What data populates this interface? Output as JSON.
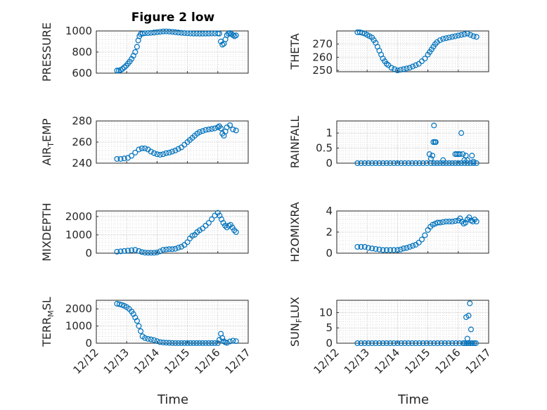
{
  "figure_title": "Figure 2 low",
  "colors": {
    "marker": "#0072BD",
    "axis": "#262626",
    "grid": "#c8c8c8"
  },
  "chart_data": [
    {
      "type": "scatter",
      "ylabel": "PRESSURE",
      "ylim": [
        600,
        1000
      ],
      "yticks": [
        600,
        800,
        1000
      ],
      "x": [
        12.68,
        12.74,
        12.8,
        12.86,
        12.92,
        12.98,
        13.04,
        13.1,
        13.16,
        13.22,
        13.28,
        13.34,
        13.38,
        13.42,
        13.46,
        13.52,
        13.6,
        13.7,
        13.8,
        13.9,
        14.0,
        14.1,
        14.2,
        14.3,
        14.4,
        14.5,
        14.6,
        14.7,
        14.8,
        14.9,
        15.0,
        15.1,
        15.2,
        15.3,
        15.4,
        15.5,
        15.6,
        15.7,
        15.8,
        15.9,
        16.0,
        16.05,
        16.1,
        16.15,
        16.2,
        16.25,
        16.3,
        16.35,
        16.4,
        16.45,
        16.5,
        16.55,
        16.6
      ],
      "y": [
        625,
        625,
        630,
        640,
        655,
        670,
        690,
        710,
        735,
        765,
        800,
        850,
        910,
        950,
        970,
        975,
        978,
        980,
        982,
        985,
        988,
        992,
        995,
        996,
        994,
        992,
        988,
        985,
        982,
        980,
        978,
        976,
        975,
        975,
        974,
        974,
        975,
        975,
        976,
        976,
        976,
        975,
        900,
        870,
        880,
        920,
        960,
        975,
        980,
        970,
        960,
        950,
        958
      ],
      "xlim": [
        12,
        17
      ],
      "xticks": [
        12,
        13,
        14,
        15,
        16,
        17
      ],
      "xticklabels": [
        "12/12",
        "12/13",
        "12/14",
        "12/15",
        "12/16",
        "12/17"
      ]
    },
    {
      "type": "scatter",
      "ylabel": "THETA",
      "ylim": [
        249,
        280
      ],
      "yticks": [
        250,
        260,
        270
      ],
      "x": [
        12.68,
        12.76,
        12.84,
        12.92,
        13.0,
        13.08,
        13.16,
        13.22,
        13.28,
        13.34,
        13.4,
        13.46,
        13.52,
        13.58,
        13.64,
        13.7,
        13.8,
        13.9,
        14.0,
        14.1,
        14.2,
        14.3,
        14.4,
        14.5,
        14.6,
        14.7,
        14.8,
        14.9,
        15.0,
        15.06,
        15.12,
        15.18,
        15.24,
        15.3,
        15.4,
        15.5,
        15.6,
        15.7,
        15.8,
        15.9,
        16.0,
        16.1,
        16.2,
        16.3,
        16.4,
        16.5,
        16.6
      ],
      "y": [
        279,
        279,
        278.5,
        278,
        277,
        276,
        275,
        273,
        271,
        268,
        265,
        262,
        259,
        257,
        255,
        254,
        252,
        251,
        250,
        250.5,
        251,
        251.5,
        252,
        253,
        254,
        255,
        257,
        259,
        262,
        264,
        266,
        268,
        270,
        271.5,
        273,
        274,
        274.5,
        275,
        275.5,
        276,
        276.5,
        277,
        277.5,
        278,
        277,
        276,
        275.5
      ],
      "xlim": [
        12,
        17
      ],
      "xticks": [
        12,
        13,
        14,
        15,
        16,
        17
      ],
      "xticklabels": [
        "12/12",
        "12/13",
        "12/14",
        "12/15",
        "12/16",
        "12/17"
      ]
    },
    {
      "type": "scatter",
      "ylabel": "AIR_TEMP",
      "ylim": [
        240,
        280
      ],
      "yticks": [
        240,
        260,
        280
      ],
      "x": [
        12.68,
        12.8,
        12.92,
        13.04,
        13.16,
        13.28,
        13.4,
        13.5,
        13.6,
        13.7,
        13.8,
        13.9,
        14.0,
        14.1,
        14.2,
        14.3,
        14.4,
        14.5,
        14.6,
        14.7,
        14.8,
        14.9,
        15.0,
        15.08,
        15.16,
        15.24,
        15.32,
        15.4,
        15.5,
        15.6,
        15.7,
        15.8,
        15.9,
        16.0,
        16.05,
        16.1,
        16.15,
        16.2,
        16.25,
        16.3,
        16.4,
        16.5,
        16.6
      ],
      "y": [
        244,
        244,
        244.5,
        245,
        247,
        250,
        253,
        254,
        254,
        253,
        251,
        249.5,
        248.5,
        248,
        248.5,
        249.5,
        250,
        251,
        252,
        253.5,
        255,
        257.5,
        260,
        262,
        264,
        266,
        268,
        269.5,
        270.5,
        271.5,
        272,
        272.5,
        273,
        274,
        275,
        273,
        268,
        266,
        270,
        274,
        276,
        272,
        271
      ],
      "xlim": [
        12,
        17
      ],
      "xticks": [
        12,
        13,
        14,
        15,
        16,
        17
      ],
      "xticklabels": [
        "12/12",
        "12/13",
        "12/14",
        "12/15",
        "12/16",
        "12/17"
      ]
    },
    {
      "type": "scatter",
      "ylabel": "RAINFALL",
      "ylim": [
        0,
        1.4
      ],
      "yticks": [
        0,
        0.5,
        1
      ],
      "x": [
        12.68,
        12.8,
        12.92,
        13.04,
        13.16,
        13.28,
        13.4,
        13.52,
        13.64,
        13.76,
        13.88,
        14.0,
        14.12,
        14.24,
        14.36,
        14.48,
        14.6,
        14.72,
        14.84,
        14.96,
        15.1,
        15.2,
        15.3,
        15.4,
        15.5,
        15.6,
        15.7,
        15.8,
        15.9,
        16.0,
        16.1,
        16.2,
        16.3,
        16.4,
        16.5,
        16.6,
        15.05,
        15.1,
        15.15,
        15.18,
        15.2,
        15.23,
        15.26,
        15.5,
        15.9,
        15.95,
        16.0,
        16.05,
        16.1,
        16.15,
        16.2,
        16.25,
        16.3,
        16.45,
        16.5
      ],
      "y": [
        0,
        0,
        0,
        0,
        0,
        0,
        0,
        0,
        0,
        0,
        0,
        0,
        0,
        0,
        0,
        0,
        0,
        0,
        0,
        0,
        0,
        0,
        0,
        0,
        0,
        0,
        0,
        0,
        0,
        0,
        0,
        0,
        0,
        0,
        0,
        0,
        0.3,
        0.15,
        0.25,
        0.7,
        1.25,
        0.7,
        0.7,
        0.1,
        0.3,
        0.3,
        0.3,
        0.3,
        1.0,
        0.3,
        0.1,
        0.25,
        0.1,
        0.25,
        0.05
      ],
      "xlim": [
        12,
        17
      ],
      "xticks": [
        12,
        13,
        14,
        15,
        16,
        17
      ],
      "xticklabels": [
        "12/12",
        "12/13",
        "12/14",
        "12/15",
        "12/16",
        "12/17"
      ]
    },
    {
      "type": "scatter",
      "ylabel": "MIXDEPTH",
      "ylim": [
        0,
        2300
      ],
      "yticks": [
        0,
        1000,
        2000
      ],
      "x": [
        12.68,
        12.8,
        12.92,
        13.04,
        13.16,
        13.28,
        13.4,
        13.5,
        13.6,
        13.7,
        13.8,
        13.9,
        14.0,
        14.1,
        14.2,
        14.3,
        14.4,
        14.5,
        14.6,
        14.7,
        14.8,
        14.9,
        15.0,
        15.08,
        15.16,
        15.24,
        15.32,
        15.4,
        15.5,
        15.6,
        15.7,
        15.8,
        15.9,
        16.0,
        16.06,
        16.12,
        16.18,
        16.24,
        16.3,
        16.36,
        16.42,
        16.48,
        16.54,
        16.6
      ],
      "y": [
        80,
        100,
        120,
        140,
        160,
        180,
        120,
        60,
        30,
        20,
        20,
        20,
        40,
        100,
        180,
        200,
        220,
        220,
        240,
        300,
        350,
        450,
        600,
        800,
        950,
        1000,
        1150,
        1250,
        1350,
        1500,
        1650,
        1850,
        2050,
        2200,
        2050,
        1850,
        1650,
        1500,
        1400,
        1500,
        1550,
        1400,
        1250,
        1150
      ],
      "xlim": [
        12,
        17
      ],
      "xticks": [
        12,
        13,
        14,
        15,
        16,
        17
      ],
      "xticklabels": [
        "12/12",
        "12/13",
        "12/14",
        "12/15",
        "12/16",
        "12/17"
      ]
    },
    {
      "type": "scatter",
      "ylabel": "H2OMIXRA",
      "ylim": [
        0,
        4
      ],
      "yticks": [
        0,
        2,
        4
      ],
      "x": [
        12.68,
        12.8,
        12.92,
        13.04,
        13.16,
        13.28,
        13.4,
        13.52,
        13.64,
        13.76,
        13.88,
        14.0,
        14.1,
        14.2,
        14.3,
        14.4,
        14.5,
        14.6,
        14.7,
        14.8,
        14.9,
        15.0,
        15.08,
        15.16,
        15.24,
        15.32,
        15.4,
        15.5,
        15.6,
        15.7,
        15.8,
        15.9,
        16.0,
        16.06,
        16.12,
        16.18,
        16.24,
        16.3,
        16.36,
        16.42,
        16.48,
        16.54,
        16.6
      ],
      "y": [
        0.6,
        0.6,
        0.6,
        0.5,
        0.45,
        0.4,
        0.35,
        0.3,
        0.3,
        0.3,
        0.3,
        0.3,
        0.35,
        0.45,
        0.5,
        0.6,
        0.7,
        0.8,
        1.0,
        1.3,
        1.7,
        2.2,
        2.5,
        2.7,
        2.8,
        2.9,
        2.9,
        2.95,
        3.0,
        3.0,
        3.0,
        3.05,
        3.1,
        3.3,
        3.0,
        2.8,
        2.9,
        3.2,
        3.4,
        3.1,
        3.0,
        3.2,
        3.0
      ],
      "xlim": [
        12,
        17
      ],
      "xticks": [
        12,
        13,
        14,
        15,
        16,
        17
      ],
      "xticklabels": [
        "12/12",
        "12/13",
        "12/14",
        "12/15",
        "12/16",
        "12/17"
      ]
    },
    {
      "type": "scatter",
      "ylabel": "TERR_MSL",
      "ylim": [
        0,
        2500
      ],
      "yticks": [
        0,
        1000,
        2000
      ],
      "x": [
        12.68,
        12.76,
        12.84,
        12.92,
        13.0,
        13.08,
        13.16,
        13.22,
        13.28,
        13.34,
        13.4,
        13.46,
        13.52,
        13.6,
        13.7,
        13.8,
        13.9,
        14.0,
        14.1,
        14.2,
        14.3,
        14.4,
        14.5,
        14.6,
        14.7,
        14.8,
        14.9,
        15.0,
        15.1,
        15.2,
        15.3,
        15.4,
        15.5,
        15.6,
        15.7,
        15.8,
        15.9,
        16.0,
        16.05,
        16.1,
        16.15,
        16.2,
        16.25,
        16.3,
        16.4,
        16.5,
        16.6
      ],
      "y": [
        2300,
        2270,
        2230,
        2180,
        2100,
        2000,
        1850,
        1700,
        1500,
        1300,
        1000,
        700,
        400,
        300,
        250,
        220,
        180,
        120,
        60,
        40,
        30,
        20,
        10,
        5,
        5,
        5,
        5,
        5,
        5,
        5,
        5,
        5,
        5,
        5,
        5,
        5,
        5,
        5,
        200,
        550,
        300,
        100,
        50,
        20,
        100,
        150,
        120
      ],
      "xlim": [
        12,
        17
      ],
      "xticks": [
        12,
        13,
        14,
        15,
        16,
        17
      ],
      "xticklabels": [
        "12/12",
        "12/13",
        "12/14",
        "12/15",
        "12/16",
        "12/17"
      ]
    },
    {
      "type": "scatter",
      "ylabel": "SUN_FLUX",
      "ylim": [
        0,
        14
      ],
      "yticks": [
        0,
        5,
        10
      ],
      "x": [
        12.68,
        12.8,
        12.92,
        13.04,
        13.16,
        13.28,
        13.4,
        13.52,
        13.64,
        13.76,
        13.88,
        14.0,
        14.12,
        14.24,
        14.36,
        14.48,
        14.6,
        14.72,
        14.84,
        14.96,
        15.08,
        15.2,
        15.32,
        15.44,
        15.56,
        15.68,
        15.8,
        15.92,
        16.04,
        16.16,
        16.22,
        16.28,
        16.34,
        16.4,
        16.46,
        16.52,
        16.58,
        16.3,
        16.34,
        16.38,
        16.42,
        16.26
      ],
      "y": [
        0,
        0,
        0,
        0,
        0,
        0,
        0,
        0,
        0,
        0,
        0,
        0,
        0,
        0,
        0,
        0,
        0,
        0,
        0,
        0,
        0,
        0,
        0,
        0,
        0,
        0,
        0,
        0,
        0,
        0,
        0,
        0,
        0,
        0,
        0,
        0,
        0,
        1.5,
        9,
        13,
        4.5,
        8.5
      ],
      "xlim": [
        12,
        17
      ],
      "xticks": [
        12,
        13,
        14,
        15,
        16,
        17
      ],
      "xticklabels": [
        "12/12",
        "12/13",
        "12/14",
        "12/15",
        "12/16",
        "12/17"
      ],
      "xlabel": "Time"
    }
  ],
  "x_axis_label": "Time"
}
